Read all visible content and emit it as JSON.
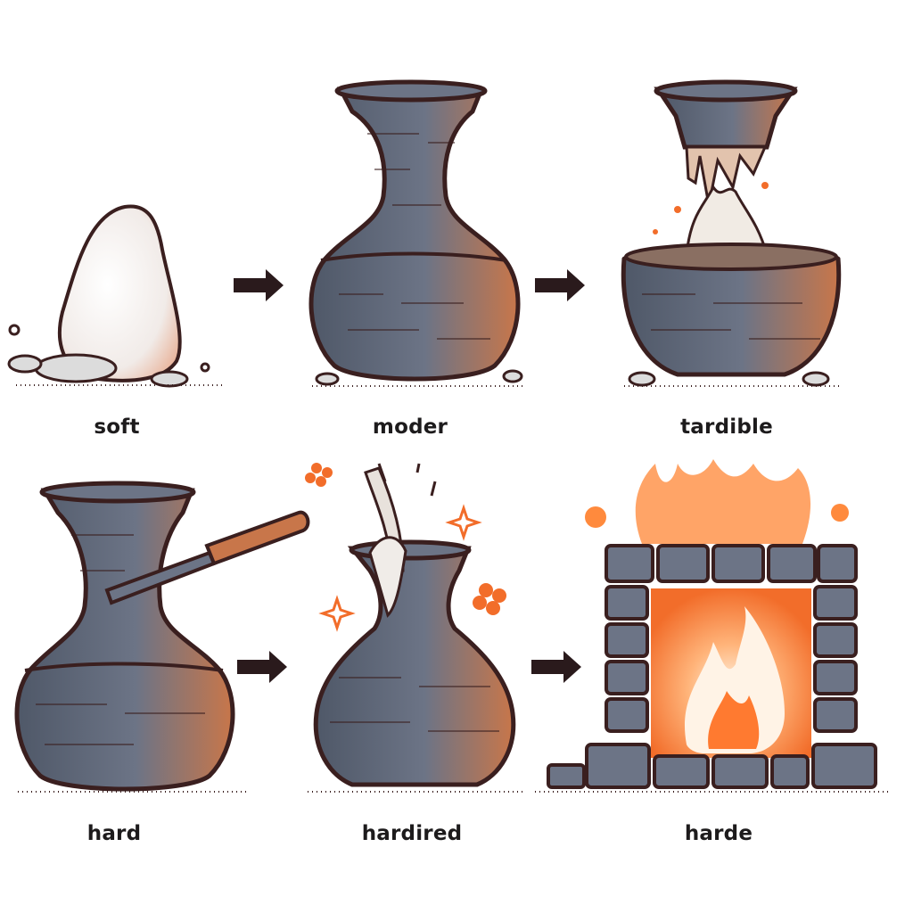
{
  "stages": [
    {
      "label": "soft"
    },
    {
      "label": "moder"
    },
    {
      "label": "tardible"
    },
    {
      "label": "hard"
    },
    {
      "label": "hardired"
    },
    {
      "label": "harde"
    }
  ],
  "colors": {
    "outline": "#3a1f1f",
    "clay": "#606a7d",
    "clay_light": "#7a8498",
    "accent": "#f26d2a",
    "fire": "#ff8a3d",
    "soft_white": "#f4efec",
    "arrow": "#2a1a1c"
  }
}
